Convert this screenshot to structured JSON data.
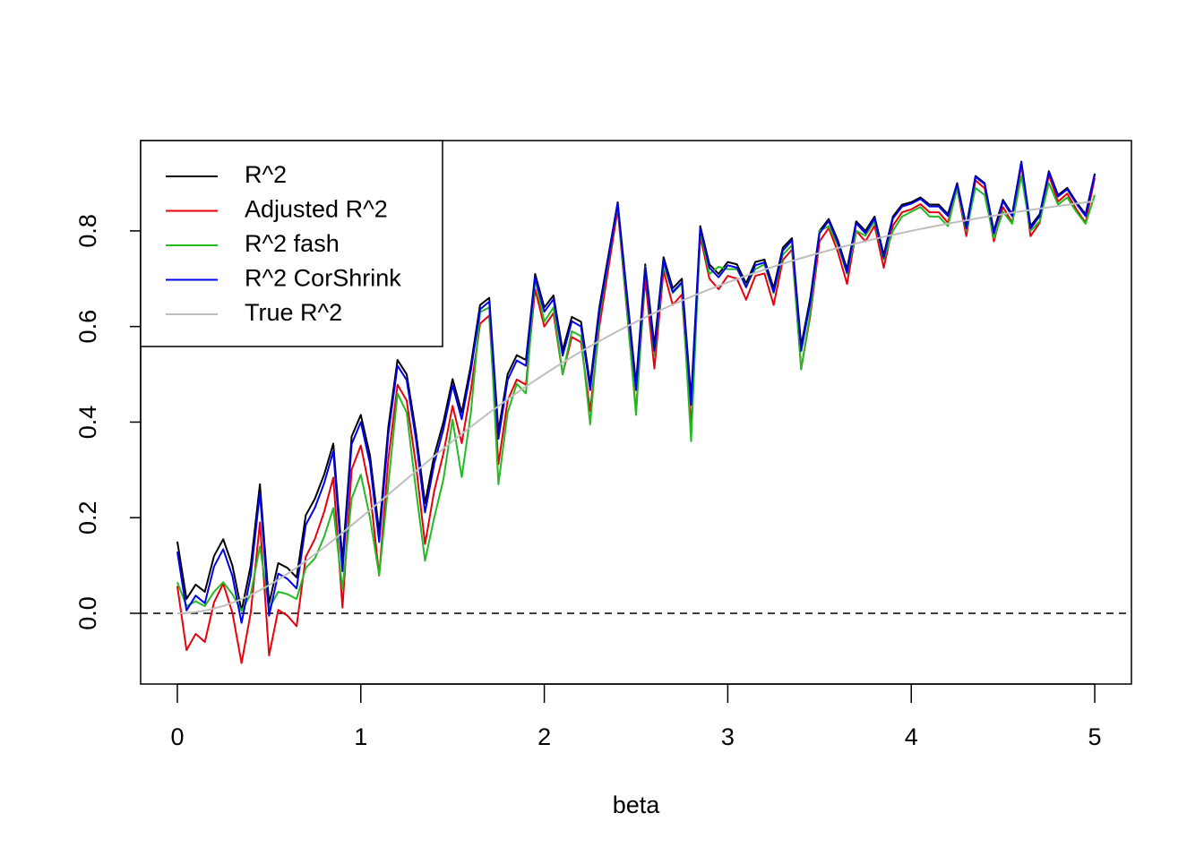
{
  "chart_data": {
    "type": "line",
    "x_label": "beta",
    "x": [
      0,
      0.05,
      0.1,
      0.15,
      0.2,
      0.25,
      0.3,
      0.35,
      0.4,
      0.45,
      0.5,
      0.55,
      0.6,
      0.65,
      0.7,
      0.75,
      0.8,
      0.85,
      0.9,
      0.95,
      1,
      1.05,
      1.1,
      1.15,
      1.2,
      1.25,
      1.3,
      1.35,
      1.4,
      1.45,
      1.5,
      1.55,
      1.6,
      1.65,
      1.7,
      1.75,
      1.8,
      1.85,
      1.9,
      1.95,
      2,
      2.05,
      2.1,
      2.15,
      2.2,
      2.25,
      2.3,
      2.35,
      2.4,
      2.45,
      2.5,
      2.55,
      2.6,
      2.65,
      2.7,
      2.75,
      2.8,
      2.85,
      2.9,
      2.95,
      3,
      3.05,
      3.1,
      3.15,
      3.2,
      3.25,
      3.3,
      3.35,
      3.4,
      3.45,
      3.5,
      3.55,
      3.6,
      3.65,
      3.7,
      3.75,
      3.8,
      3.85,
      3.9,
      3.95,
      4,
      4.05,
      4.1,
      4.15,
      4.2,
      4.25,
      4.3,
      4.35,
      4.4,
      4.45,
      4.5,
      4.55,
      4.6,
      4.65,
      4.7,
      4.75,
      4.8,
      4.85,
      4.9,
      4.95,
      5
    ],
    "series": [
      {
        "name": "R^2",
        "color": "#000000",
        "values": [
          0.15,
          0.03,
          0.06,
          0.045,
          0.12,
          0.155,
          0.1,
          0.005,
          0.1,
          0.27,
          0.02,
          0.105,
          0.095,
          0.075,
          0.205,
          0.24,
          0.29,
          0.355,
          0.11,
          0.37,
          0.415,
          0.33,
          0.17,
          0.39,
          0.53,
          0.5,
          0.38,
          0.23,
          0.33,
          0.4,
          0.49,
          0.42,
          0.52,
          0.645,
          0.66,
          0.38,
          0.5,
          0.54,
          0.53,
          0.71,
          0.64,
          0.665,
          0.55,
          0.62,
          0.61,
          0.48,
          0.64,
          0.75,
          0.86,
          0.67,
          0.48,
          0.73,
          0.56,
          0.745,
          0.68,
          0.7,
          0.45,
          0.81,
          0.73,
          0.71,
          0.735,
          0.73,
          0.69,
          0.735,
          0.74,
          0.68,
          0.765,
          0.785,
          0.56,
          0.66,
          0.8,
          0.825,
          0.78,
          0.72,
          0.82,
          0.8,
          0.83,
          0.75,
          0.83,
          0.855,
          0.86,
          0.87,
          0.855,
          0.855,
          0.835,
          0.9,
          0.81,
          0.915,
          0.9,
          0.8,
          0.865,
          0.835,
          0.945,
          0.81,
          0.835,
          0.925,
          0.875,
          0.89,
          0.86,
          0.835,
          0.92
        ]
      },
      {
        "name": "Adjusted R^2",
        "color": "#e8000b",
        "values": [
          0.057,
          -0.077,
          -0.043,
          -0.06,
          0.023,
          0.062,
          0.001,
          -0.104,
          0.001,
          0.19,
          -0.088,
          0.007,
          -0.005,
          -0.027,
          0.118,
          0.156,
          0.212,
          0.284,
          0.012,
          0.301,
          0.351,
          0.256,
          0.079,
          0.323,
          0.478,
          0.445,
          0.312,
          0.145,
          0.256,
          0.334,
          0.434,
          0.356,
          0.467,
          0.606,
          0.623,
          0.312,
          0.445,
          0.489,
          0.478,
          0.678,
          0.6,
          0.628,
          0.5,
          0.578,
          0.567,
          0.423,
          0.6,
          0.723,
          0.845,
          0.634,
          0.423,
          0.7,
          0.512,
          0.717,
          0.645,
          0.667,
          0.39,
          0.789,
          0.7,
          0.678,
          0.706,
          0.7,
          0.656,
          0.706,
          0.711,
          0.645,
          0.739,
          0.761,
          0.512,
          0.623,
          0.778,
          0.806,
          0.756,
          0.689,
          0.8,
          0.778,
          0.811,
          0.723,
          0.811,
          0.839,
          0.845,
          0.856,
          0.839,
          0.839,
          0.817,
          0.889,
          0.789,
          0.906,
          0.889,
          0.778,
          0.85,
          0.817,
          0.939,
          0.789,
          0.817,
          0.917,
          0.861,
          0.878,
          0.845,
          0.817,
          0.911
        ]
      },
      {
        "name": "R^2 fash",
        "color": "#22bb22",
        "values": [
          0.065,
          0.015,
          0.025,
          0.015,
          0.045,
          0.065,
          0.04,
          0.005,
          0.04,
          0.14,
          0.01,
          0.045,
          0.04,
          0.03,
          0.095,
          0.115,
          0.16,
          0.22,
          0.05,
          0.24,
          0.29,
          0.2,
          0.08,
          0.27,
          0.46,
          0.42,
          0.26,
          0.11,
          0.2,
          0.28,
          0.405,
          0.285,
          0.42,
          0.63,
          0.64,
          0.27,
          0.42,
          0.48,
          0.46,
          0.7,
          0.61,
          0.64,
          0.5,
          0.59,
          0.58,
          0.395,
          0.62,
          0.74,
          0.855,
          0.64,
          0.415,
          0.725,
          0.54,
          0.73,
          0.67,
          0.69,
          0.36,
          0.8,
          0.71,
          0.725,
          0.72,
          0.72,
          0.685,
          0.72,
          0.73,
          0.67,
          0.75,
          0.77,
          0.51,
          0.63,
          0.8,
          0.81,
          0.77,
          0.71,
          0.8,
          0.79,
          0.82,
          0.74,
          0.8,
          0.83,
          0.84,
          0.85,
          0.83,
          0.83,
          0.81,
          0.89,
          0.8,
          0.89,
          0.875,
          0.785,
          0.84,
          0.815,
          0.915,
          0.8,
          0.82,
          0.9,
          0.855,
          0.87,
          0.84,
          0.815,
          0.875
        ]
      },
      {
        "name": "R^2 CorShrink",
        "color": "#0000ee",
        "values": [
          0.129,
          0.006,
          0.037,
          0.021,
          0.098,
          0.134,
          0.078,
          -0.02,
          0.078,
          0.252,
          -0.005,
          0.083,
          0.072,
          0.052,
          0.185,
          0.221,
          0.272,
          0.339,
          0.088,
          0.354,
          0.4,
          0.313,
          0.149,
          0.375,
          0.518,
          0.488,
          0.365,
          0.211,
          0.313,
          0.385,
          0.477,
          0.406,
          0.508,
          0.636,
          0.652,
          0.365,
          0.488,
          0.529,
          0.518,
          0.703,
          0.631,
          0.657,
          0.539,
          0.611,
          0.6,
          0.467,
          0.631,
          0.744,
          0.857,
          0.662,
          0.467,
          0.723,
          0.549,
          0.739,
          0.672,
          0.693,
          0.436,
          0.805,
          0.723,
          0.703,
          0.728,
          0.723,
          0.682,
          0.728,
          0.734,
          0.672,
          0.759,
          0.78,
          0.549,
          0.652,
          0.795,
          0.821,
          0.775,
          0.713,
          0.816,
          0.795,
          0.826,
          0.744,
          0.826,
          0.851,
          0.857,
          0.867,
          0.851,
          0.851,
          0.831,
          0.898,
          0.805,
          0.913,
          0.898,
          0.795,
          0.862,
          0.831,
          0.944,
          0.805,
          0.831,
          0.923,
          0.872,
          0.887,
          0.857,
          0.831,
          0.918
        ]
      },
      {
        "name": "True R^2",
        "color": "#bebebe",
        "values": [
          0,
          0.0006,
          0.0025,
          0.0056,
          0.0099,
          0.0154,
          0.022,
          0.0297,
          0.0385,
          0.0482,
          0.0588,
          0.0703,
          0.0826,
          0.0955,
          0.1091,
          0.1233,
          0.1379,
          0.153,
          0.1684,
          0.1841,
          0.2,
          0.2161,
          0.2322,
          0.2485,
          0.2647,
          0.2809,
          0.297,
          0.313,
          0.3289,
          0.3445,
          0.36,
          0.3752,
          0.3902,
          0.405,
          0.4194,
          0.4336,
          0.4475,
          0.4611,
          0.4744,
          0.4873,
          0.5,
          0.5123,
          0.5244,
          0.5361,
          0.5475,
          0.5586,
          0.5694,
          0.5799,
          0.5902,
          0.6001,
          0.6098,
          0.6191,
          0.6283,
          0.6371,
          0.6457,
          0.6541,
          0.6622,
          0.67,
          0.6777,
          0.6851,
          0.6923,
          0.6993,
          0.7061,
          0.7127,
          0.7191,
          0.7253,
          0.7314,
          0.7372,
          0.7429,
          0.7485,
          0.7538,
          0.7591,
          0.7642,
          0.7691,
          0.7739,
          0.7785,
          0.7831,
          0.7875,
          0.7918,
          0.7959,
          0.8,
          0.8039,
          0.8078,
          0.8115,
          0.8152,
          0.8187,
          0.8221,
          0.8255,
          0.8288,
          0.8319,
          0.8351,
          0.8381,
          0.841,
          0.8439,
          0.8467,
          0.8494,
          0.8521,
          0.8547,
          0.8572,
          0.8597,
          0.8621
        ]
      }
    ],
    "xlim": [
      -0.2,
      5.2
    ],
    "ylim": [
      -0.148,
      0.989
    ],
    "xticks": [
      0,
      1,
      2,
      3,
      4,
      5
    ],
    "yticks": [
      {
        "value": 0,
        "label": "0.0"
      },
      0.2,
      0.4,
      0.6,
      0.8
    ],
    "reference_line": {
      "y": 0,
      "style": "dashed"
    },
    "legend": "top-left"
  }
}
